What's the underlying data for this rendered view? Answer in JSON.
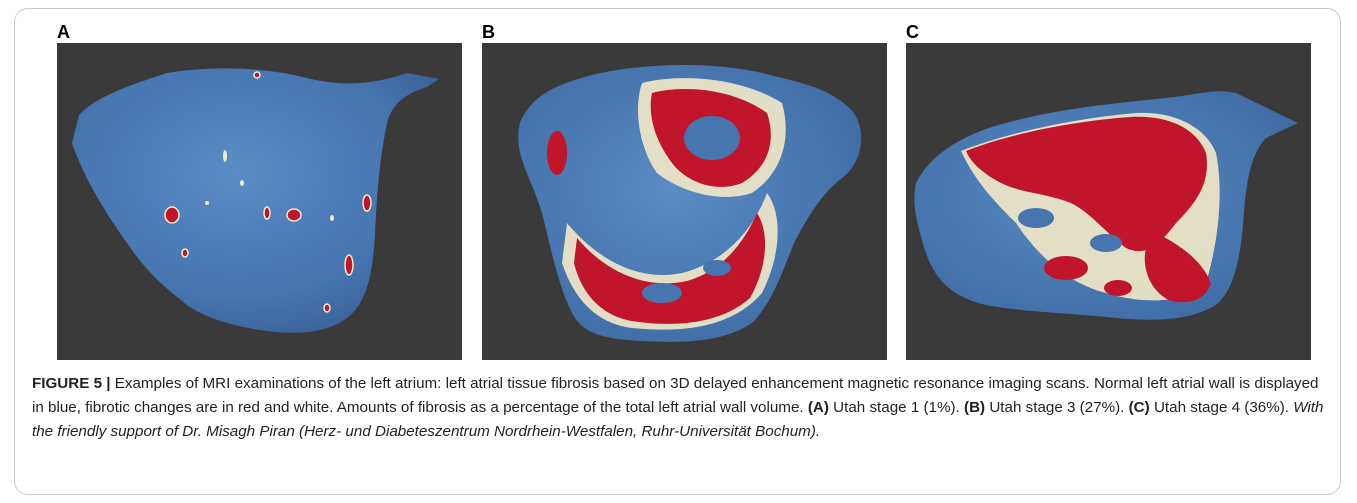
{
  "panels": [
    {
      "label": "A"
    },
    {
      "label": "B"
    },
    {
      "label": "C"
    }
  ],
  "caption": {
    "figure_label": "FIGURE 5 |",
    "text_1": " Examples of MRI examinations of the left atrium: left atrial tissue fibrosis based on 3D delayed enhancement magnetic resonance imaging scans. Normal left atrial wall is displayed in blue, fibrotic changes are in red and white. Amounts of fibrosis as a percentage of the total left atrial wall volume. ",
    "ref_a": "(A)",
    "text_a": " Utah stage 1 (1%). ",
    "ref_b": "(B)",
    "text_b": " Utah stage 3 (27%). ",
    "ref_c": "(C)",
    "text_c": " Utah stage 4 (36%). ",
    "acknowledgment": "With the friendly support of Dr. Misagh Piran (Herz- und Diabeteszentrum Nordrhein-Westfalen, Ruhr-Universität Bochum).",
    "trailing": ""
  },
  "colors": {
    "panel_background": "#3a3a3a",
    "normal_tissue_blue": "#4a7ab5",
    "fibrosis_red": "#c0152a",
    "fibrosis_white": "#f3eac8"
  }
}
